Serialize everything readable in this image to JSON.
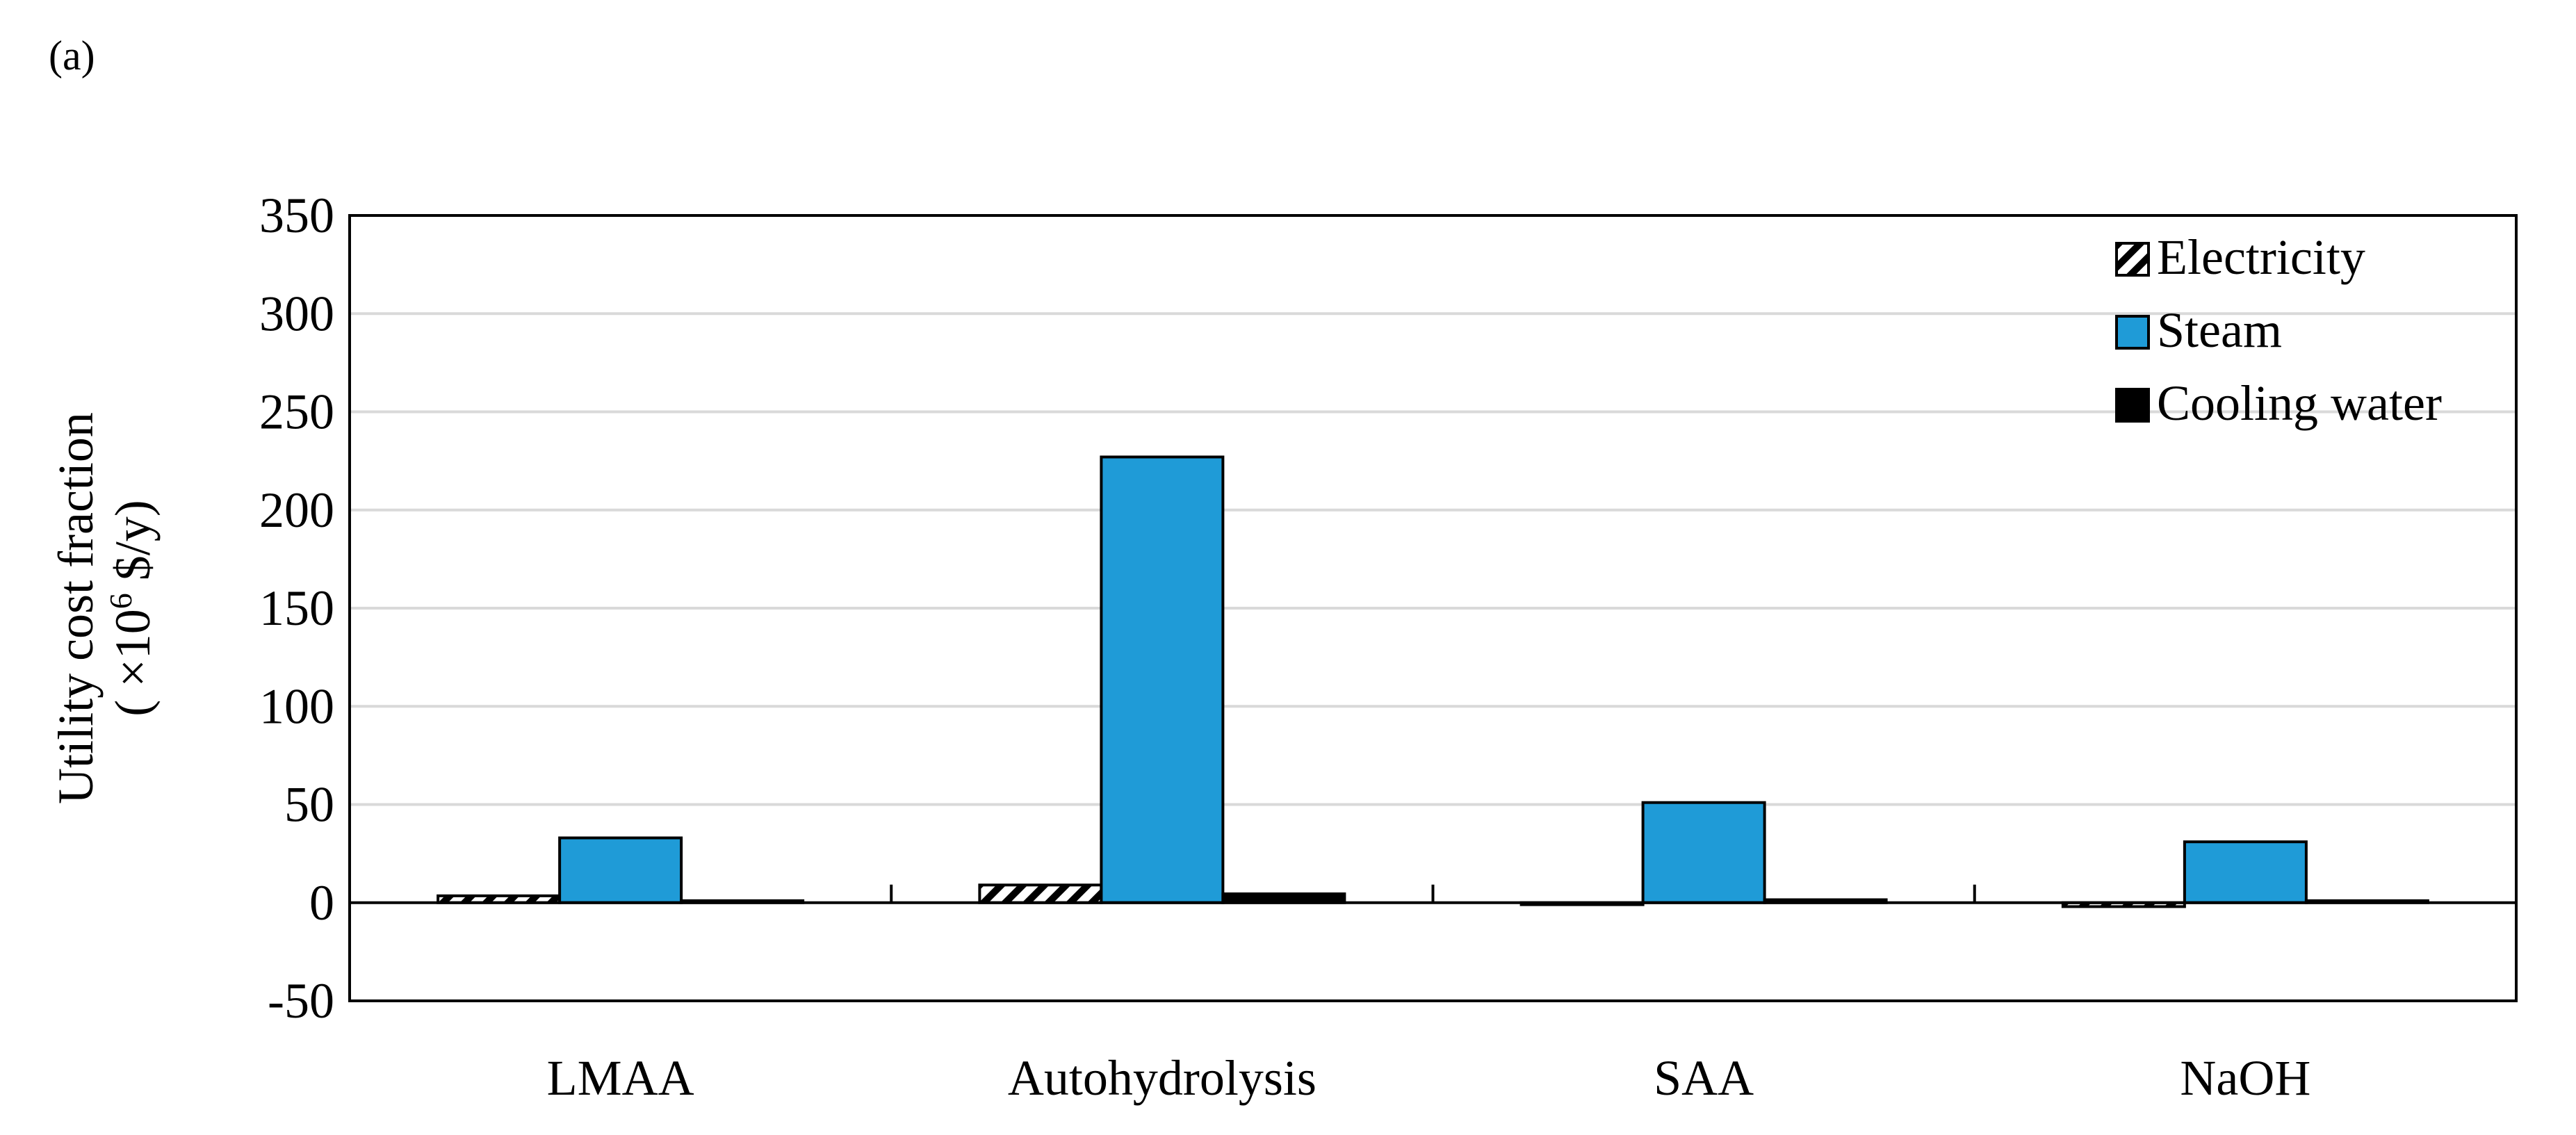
{
  "panel_label": "(a)",
  "chart_data": {
    "type": "bar",
    "ylabel_line1": "Utility cost fraction",
    "ylabel_line2_prefix": "( ×10",
    "ylabel_line2_exp": "6",
    "ylabel_line2_suffix": " $/y)",
    "xlabel": "",
    "ylim": [
      -50,
      350
    ],
    "yticks": [
      -50,
      0,
      50,
      100,
      150,
      200,
      250,
      300,
      350
    ],
    "grid": true,
    "legend_position": "top-right",
    "categories": [
      "LMAA",
      "Autohydrolysis",
      "SAA",
      "NaOH"
    ],
    "series": [
      {
        "name": "Electricity",
        "values": [
          3.5,
          9,
          -1,
          -2
        ],
        "color": "#ffffff",
        "pattern": "hatch"
      },
      {
        "name": "Steam",
        "values": [
          33,
          227,
          51,
          31
        ],
        "color": "#1f9bd7"
      },
      {
        "name": "Cooling water",
        "values": [
          1,
          4.5,
          1.5,
          1
        ],
        "color": "#000000"
      }
    ]
  }
}
